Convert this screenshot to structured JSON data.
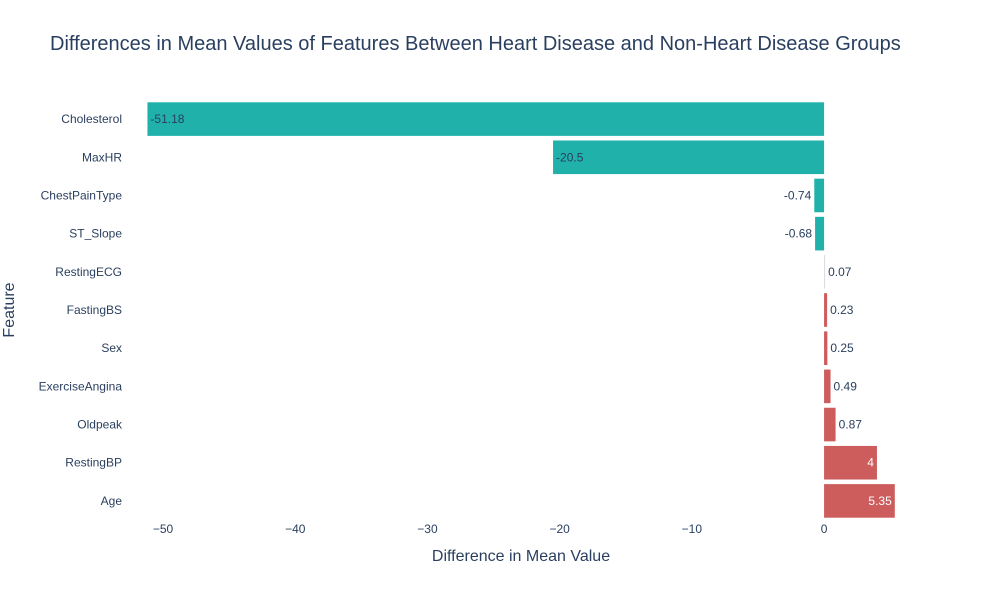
{
  "chart_data": {
    "type": "bar",
    "orientation": "horizontal",
    "title": "Differences in Mean Values of Features Between Heart Disease and Non-Heart Disease Groups",
    "xlabel": "Difference in Mean Value",
    "ylabel": "Feature",
    "xlim": [
      -52.5,
      6.5
    ],
    "x_ticks": [
      -50,
      -40,
      -30,
      -20,
      -10,
      0
    ],
    "x_tick_labels": [
      "−50",
      "−40",
      "−30",
      "−20",
      "−10",
      "0"
    ],
    "grid": false,
    "legend": "none",
    "categories": [
      "Cholesterol",
      "MaxHR",
      "ChestPainType",
      "ST_Slope",
      "RestingECG",
      "FastingBS",
      "Sex",
      "ExerciseAngina",
      "Oldpeak",
      "RestingBP",
      "Age"
    ],
    "values": [
      -51.18,
      -20.5,
      -0.74,
      -0.68,
      0.07,
      0.23,
      0.25,
      0.49,
      0.87,
      4,
      5.35
    ],
    "data_labels": [
      "-51.18",
      "-20.5",
      "-0.74",
      "-0.68",
      "0.07",
      "0.23",
      "0.25",
      "0.49",
      "0.87",
      "4",
      "5.35"
    ],
    "colors": {
      "negative": "#20b2aa",
      "positive": "#cd5c5c",
      "near_zero": "#d9d9d9",
      "text": "#2a3f5f",
      "label_inside_negative": "#2a3f5f",
      "label_inside_positive": "#ffffff"
    }
  }
}
